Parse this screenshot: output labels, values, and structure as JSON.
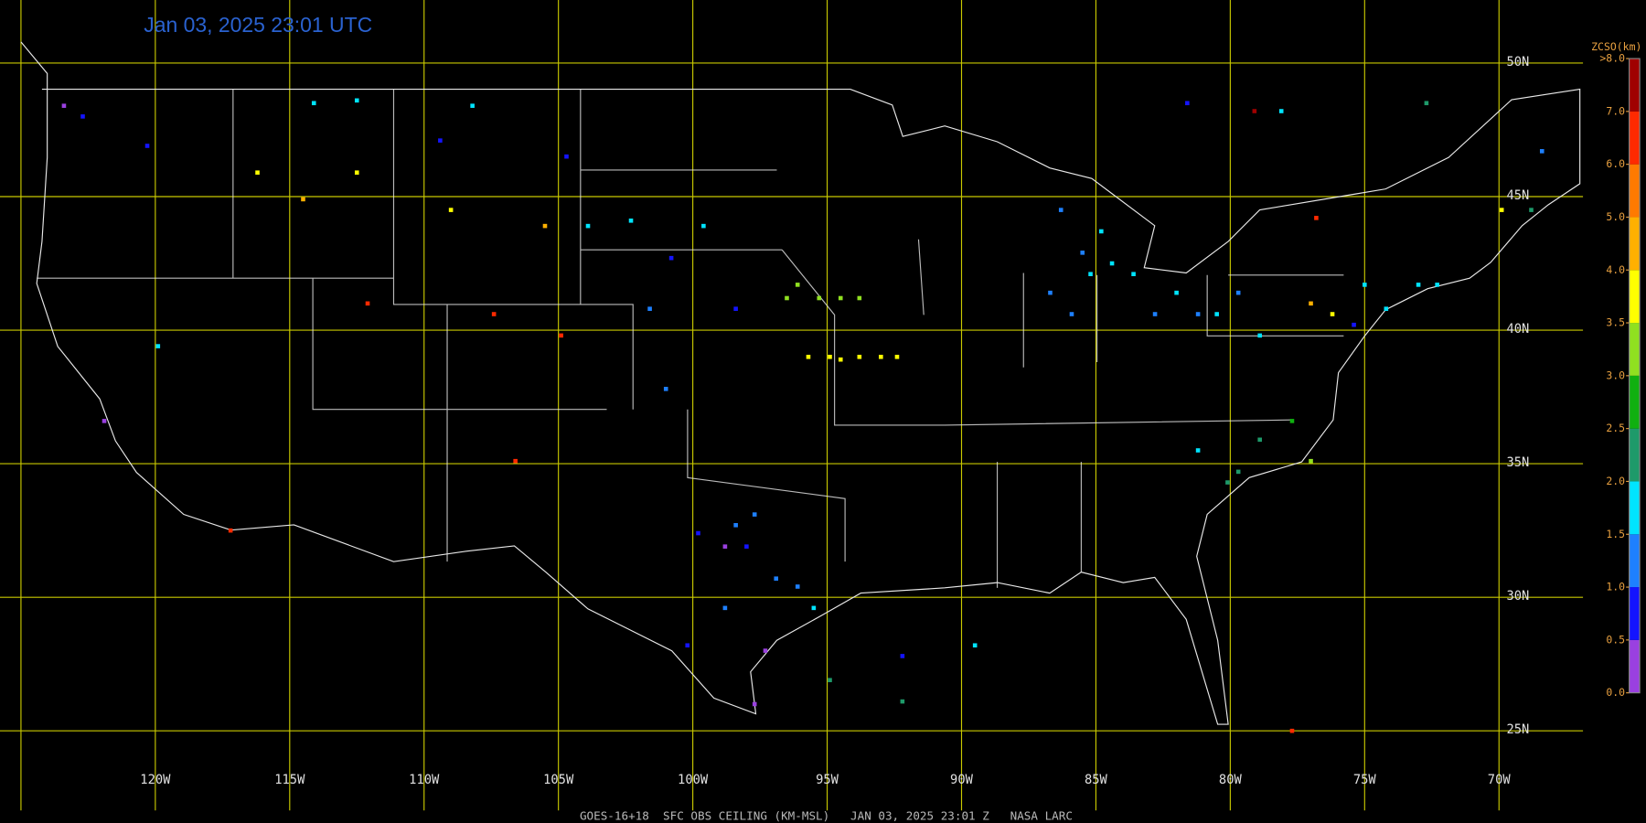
{
  "title": "Jan 03, 2025 23:01 UTC",
  "footer": "GOES-16+18  SFC OBS CEILING (KM-MSL)   JAN 03, 2025 23:01 Z   NASA LARC",
  "map": {
    "xlim": [
      -125.78,
      -64.53
    ],
    "ylim": [
      21.55,
      52.36
    ],
    "grid_color": "#c8c800",
    "lon_ticks": [
      {
        "value": -125,
        "label": null
      },
      {
        "value": -120,
        "label": "120W"
      },
      {
        "value": -115,
        "label": "115W"
      },
      {
        "value": -110,
        "label": "110W"
      },
      {
        "value": -105,
        "label": "105W"
      },
      {
        "value": -100,
        "label": "100W"
      },
      {
        "value": -95,
        "label": "95W"
      },
      {
        "value": -90,
        "label": "90W"
      },
      {
        "value": -85,
        "label": "85W"
      },
      {
        "value": -80,
        "label": "80W"
      },
      {
        "value": -75,
        "label": "75W"
      },
      {
        "value": -70,
        "label": "70W"
      }
    ],
    "lat_ticks": [
      {
        "value": 50,
        "label": "50N"
      },
      {
        "value": 45,
        "label": "45N"
      },
      {
        "value": 40,
        "label": "40N"
      },
      {
        "value": 35,
        "label": "35N"
      },
      {
        "value": 30,
        "label": "30N"
      },
      {
        "value": 25,
        "label": "25N"
      }
    ],
    "stations": {
      "lon": [
        -98.4,
        -97.7,
        -98.0,
        -96.9,
        -98.8,
        -96.1,
        -95.5,
        -99.8,
        -98.8,
        -97.3,
        -97.7,
        -100.2,
        -95.7,
        -94.9,
        -94.5,
        -93.8,
        -93.0,
        -92.4,
        -96.5,
        -96.1,
        -95.3,
        -94.5,
        -93.8,
        -86.7,
        -85.9,
        -85.2,
        -84.4,
        -83.6,
        -82.8,
        -82.0,
        -81.2,
        -85.5,
        -84.8,
        -86.3,
        -80.5,
        -79.7,
        -78.9,
        -75.0,
        -74.2,
        -73.0,
        -72.3,
        -77.0,
        -76.2,
        -75.4,
        -79.7,
        -78.9,
        -77.7,
        -80.1,
        -81.2,
        -77.0,
        -123.4,
        -122.7,
        -120.3,
        -116.2,
        -114.5,
        -112.5,
        -109.0,
        -105.5,
        -107.4,
        -104.9,
        -112.1,
        -106.6,
        -117.2,
        -121.9,
        -119.9,
        -114.1,
        -112.5,
        -108.2,
        -109.4,
        -104.7,
        -103.9,
        -102.3,
        -99.6,
        -100.8,
        -98.4,
        -101.6,
        -101.0,
        -92.2,
        -89.5,
        -92.2,
        -94.9,
        -79.1,
        -78.1,
        -81.6,
        -72.7,
        -68.4,
        -68.8,
        -69.9,
        -77.7,
        -76.8
      ],
      "lat": [
        32.7,
        33.1,
        31.9,
        30.7,
        29.6,
        30.4,
        29.6,
        32.4,
        31.9,
        28.0,
        26.0,
        28.2,
        39.0,
        39.0,
        38.9,
        39.0,
        39.0,
        39.0,
        41.2,
        41.7,
        41.2,
        41.2,
        41.2,
        41.4,
        40.6,
        42.1,
        42.5,
        42.1,
        40.6,
        41.4,
        40.6,
        42.9,
        43.7,
        44.5,
        40.6,
        41.4,
        39.8,
        41.7,
        40.8,
        41.7,
        41.7,
        41.0,
        40.6,
        40.2,
        34.7,
        35.9,
        36.6,
        34.3,
        35.5,
        35.1,
        48.4,
        48.0,
        46.9,
        45.9,
        44.9,
        45.9,
        44.5,
        43.9,
        40.6,
        39.8,
        41.0,
        35.1,
        32.5,
        36.6,
        39.4,
        48.5,
        48.6,
        48.4,
        47.1,
        46.5,
        43.9,
        44.1,
        43.9,
        42.7,
        40.8,
        40.8,
        37.8,
        27.8,
        28.2,
        26.1,
        26.9,
        48.2,
        48.2,
        48.5,
        48.5,
        46.7,
        44.5,
        44.5,
        25.0,
        44.2
      ],
      "values": [
        1.2,
        1.3,
        0.8,
        1.2,
        1.3,
        1.3,
        1.8,
        0.8,
        0.3,
        0.3,
        0.3,
        0.8,
        3.7,
        3.7,
        3.7,
        3.7,
        3.7,
        3.7,
        3.2,
        3.2,
        3.2,
        3.2,
        3.2,
        1.2,
        1.2,
        1.8,
        1.8,
        1.8,
        1.2,
        1.8,
        1.3,
        1.3,
        1.8,
        1.2,
        1.8,
        1.2,
        1.8,
        1.8,
        1.8,
        1.8,
        1.8,
        4.3,
        3.7,
        0.8,
        2.3,
        2.3,
        2.8,
        2.3,
        1.8,
        3.2,
        0.3,
        0.8,
        0.8,
        3.7,
        4.3,
        3.7,
        3.7,
        4.3,
        6.5,
        6.5,
        6.5,
        6.5,
        6.5,
        0.3,
        1.8,
        1.8,
        1.8,
        1.8,
        0.8,
        0.8,
        1.8,
        1.8,
        1.8,
        0.8,
        0.8,
        1.2,
        1.2,
        0.8,
        1.8,
        2.3,
        2.3,
        7.5,
        1.8,
        0.8,
        2.3,
        1.2,
        2.3,
        3.7,
        6.5,
        6.5
      ]
    }
  },
  "colorbar": {
    "title": "ZCSO(km)",
    "ticks": [
      {
        "value": 0,
        "label": "0.0"
      },
      {
        "value": 0.5,
        "label": "0.5"
      },
      {
        "value": 1,
        "label": "1.0"
      },
      {
        "value": 1.5,
        "label": "1.5"
      },
      {
        "value": 2,
        "label": "2.0"
      },
      {
        "value": 2.5,
        "label": "2.5"
      },
      {
        "value": 3,
        "label": "3.0"
      },
      {
        "value": 3.5,
        "label": "3.5"
      },
      {
        "value": 4,
        "label": "4.0"
      },
      {
        "value": 5,
        "label": "5.0"
      },
      {
        "value": 6,
        "label": "6.0"
      },
      {
        "value": 7,
        "label": "7.0"
      },
      {
        "value": 8,
        "label": ">8.0"
      }
    ],
    "colors": [
      "#9a40e0",
      "#1414ff",
      "#1e80ff",
      "#00e4ff",
      "#1e9a6a",
      "#10b010",
      "#90e020",
      "#ffff00",
      "#ffb000",
      "#ff7a00",
      "#ff2a00",
      "#a00000"
    ]
  }
}
